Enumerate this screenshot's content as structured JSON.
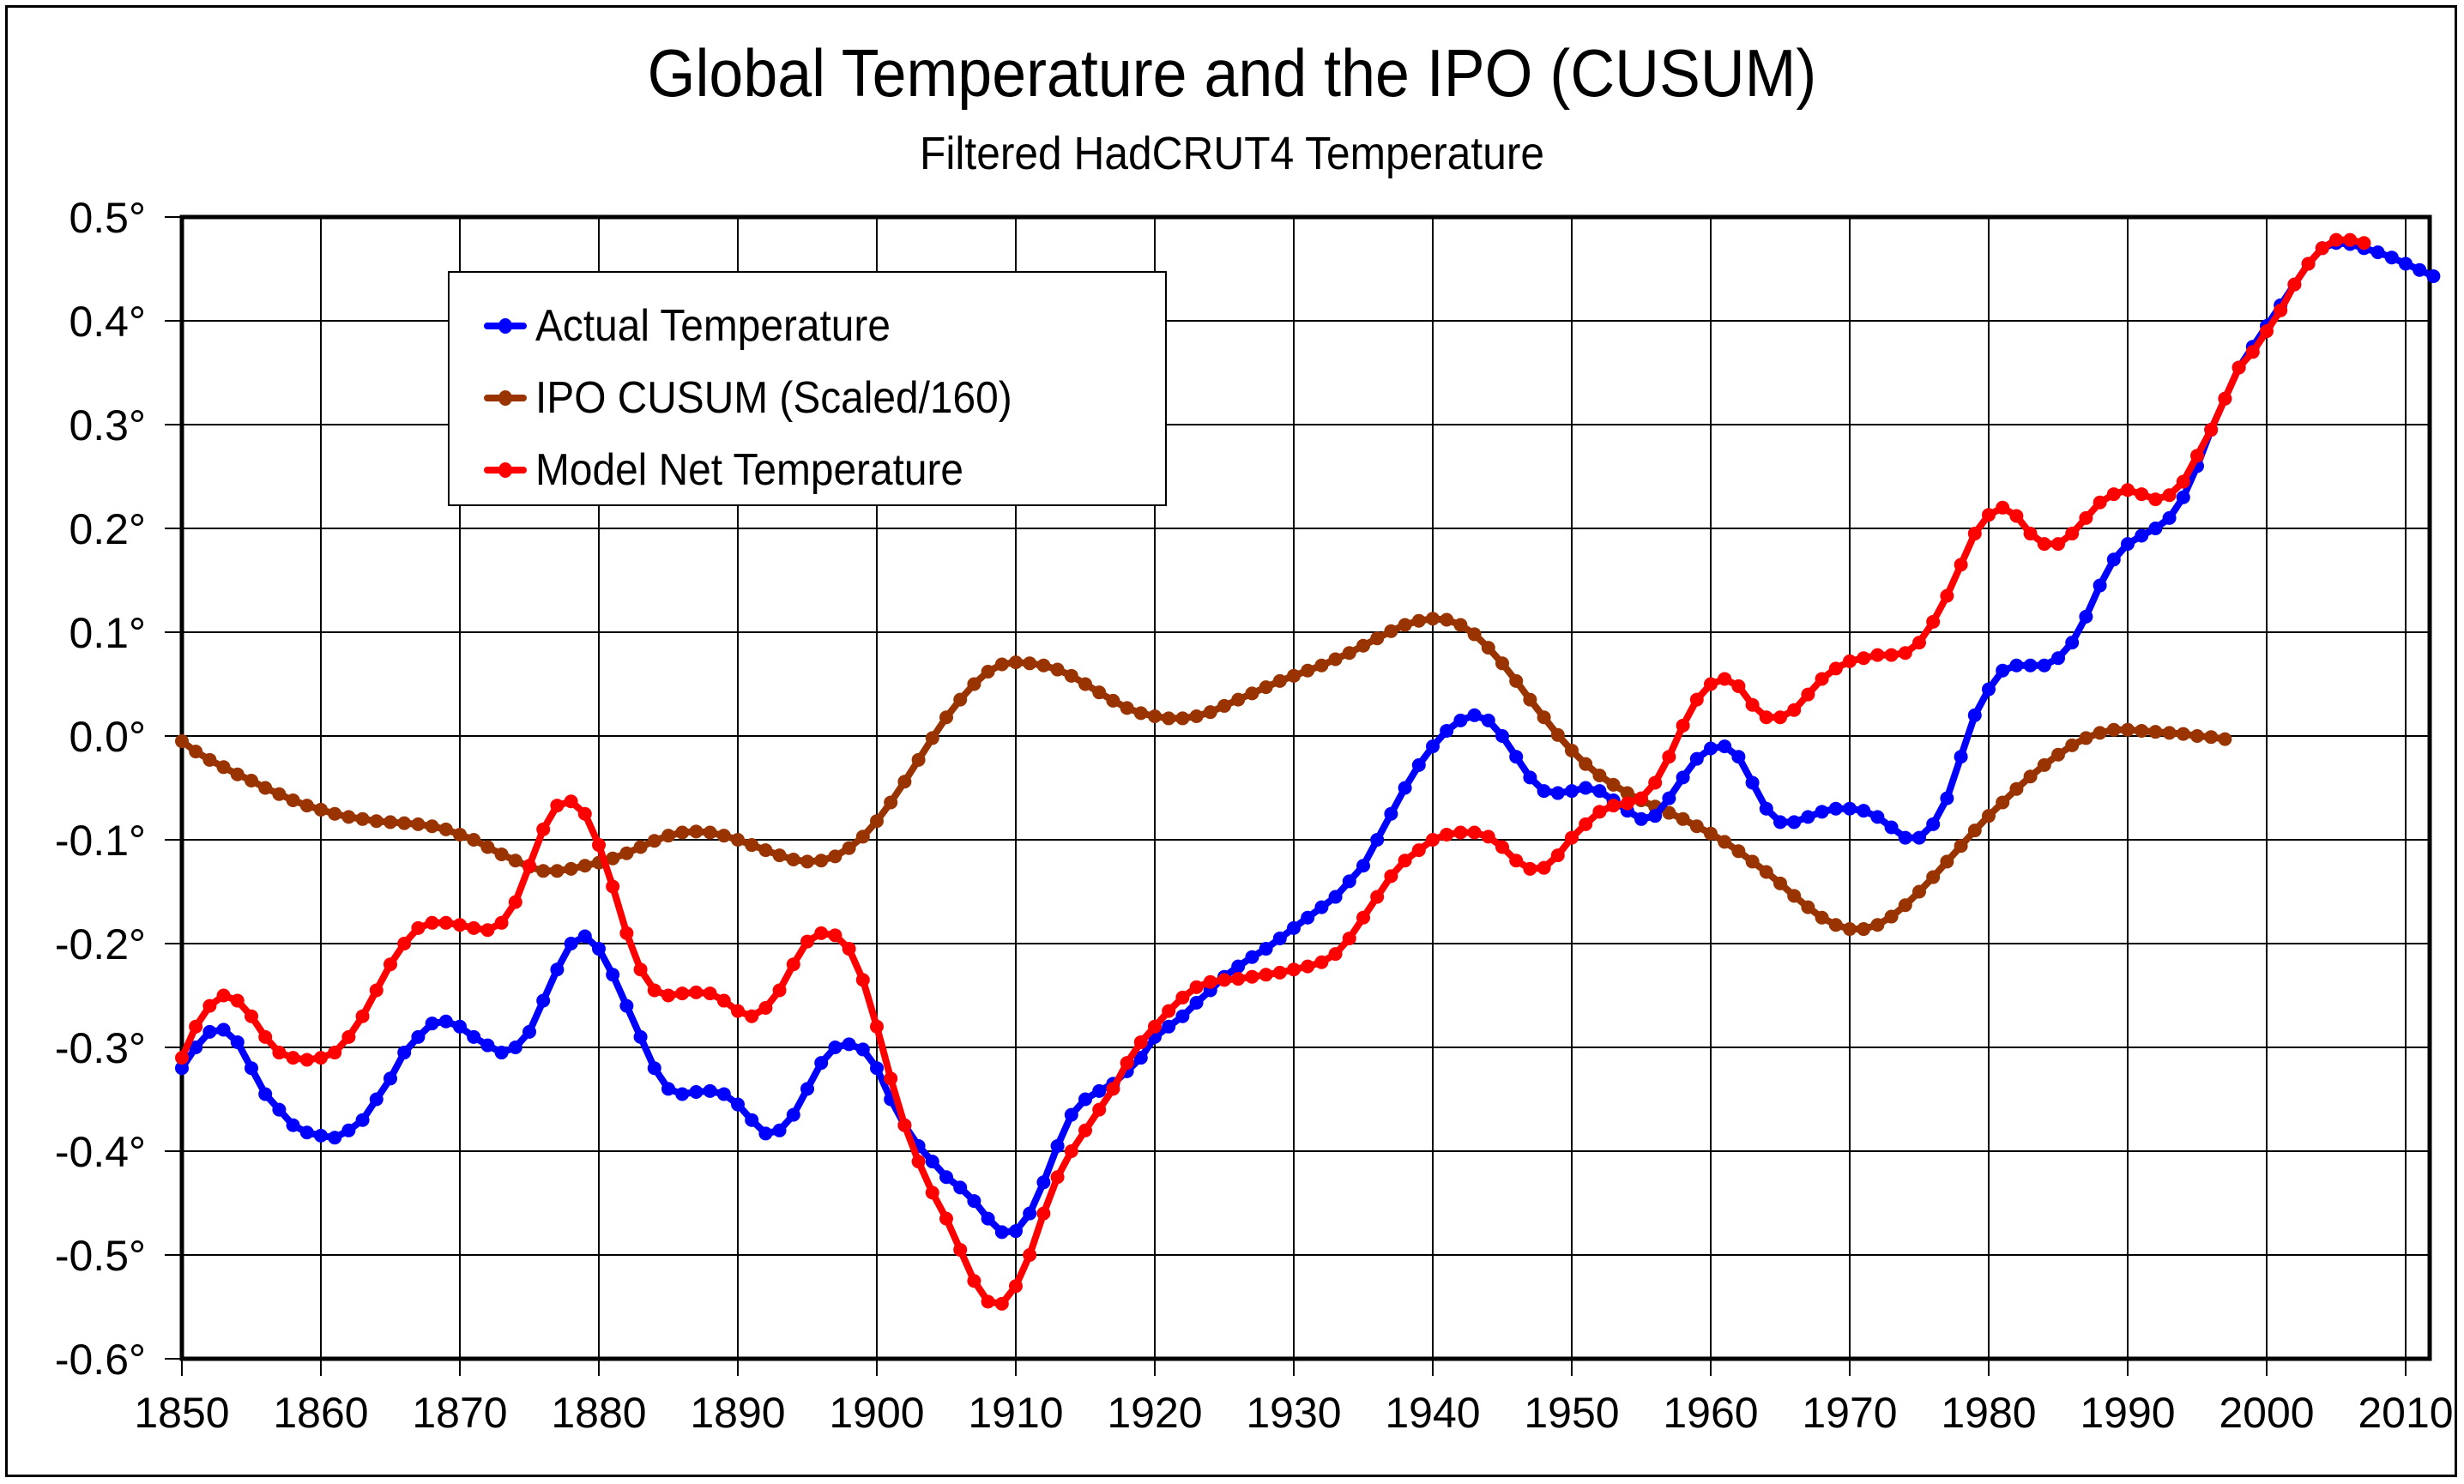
{
  "chart_data": {
    "type": "line",
    "title": "Global Temperature and the IPO (CUSUM)",
    "subtitle": "Filtered HadCRUT4 Temperature",
    "xlabel": "",
    "ylabel": "",
    "xlim": [
      1850,
      2012
    ],
    "ylim": [
      -0.6,
      0.5
    ],
    "grid": true,
    "legend_position": "top-left",
    "x_ticks": [
      "1850",
      "1860",
      "1870",
      "1880",
      "1890",
      "1900",
      "1910",
      "1920",
      "1930",
      "1940",
      "1950",
      "1960",
      "1970",
      "1980",
      "1990",
      "2000",
      "2010"
    ],
    "y_ticks": [
      "0.5°",
      "0.4°",
      "0.3°",
      "0.2°",
      "0.1°",
      "0.0°",
      "-0.1°",
      "-0.2°",
      "-0.3°",
      "-0.4°",
      "-0.5°",
      "-0.6°"
    ],
    "series": [
      {
        "name": "Actual Temperature",
        "color": "#0000ff",
        "x_start": 1850,
        "values": [
          -0.32,
          -0.3,
          -0.285,
          -0.283,
          -0.295,
          -0.32,
          -0.345,
          -0.36,
          -0.375,
          -0.382,
          -0.385,
          -0.387,
          -0.38,
          -0.37,
          -0.35,
          -0.33,
          -0.305,
          -0.29,
          -0.277,
          -0.275,
          -0.28,
          -0.29,
          -0.298,
          -0.305,
          -0.3,
          -0.285,
          -0.255,
          -0.225,
          -0.2,
          -0.193,
          -0.205,
          -0.23,
          -0.26,
          -0.29,
          -0.32,
          -0.34,
          -0.345,
          -0.343,
          -0.342,
          -0.345,
          -0.355,
          -0.37,
          -0.383,
          -0.38,
          -0.365,
          -0.34,
          -0.315,
          -0.3,
          -0.297,
          -0.302,
          -0.32,
          -0.35,
          -0.375,
          -0.395,
          -0.41,
          -0.425,
          -0.435,
          -0.448,
          -0.465,
          -0.478,
          -0.477,
          -0.46,
          -0.43,
          -0.395,
          -0.365,
          -0.35,
          -0.342,
          -0.335,
          -0.323,
          -0.31,
          -0.29,
          -0.28,
          -0.27,
          -0.257,
          -0.245,
          -0.232,
          -0.222,
          -0.213,
          -0.205,
          -0.195,
          -0.185,
          -0.175,
          -0.165,
          -0.155,
          -0.14,
          -0.125,
          -0.1,
          -0.075,
          -0.05,
          -0.028,
          -0.01,
          0.005,
          0.015,
          0.02,
          0.015,
          0.0,
          -0.02,
          -0.04,
          -0.053,
          -0.055,
          -0.053,
          -0.05,
          -0.053,
          -0.062,
          -0.072,
          -0.08,
          -0.077,
          -0.06,
          -0.04,
          -0.022,
          -0.012,
          -0.01,
          -0.02,
          -0.045,
          -0.07,
          -0.083,
          -0.083,
          -0.078,
          -0.073,
          -0.07,
          -0.07,
          -0.072,
          -0.078,
          -0.088,
          -0.098,
          -0.098,
          -0.085,
          -0.06,
          -0.02,
          0.02,
          0.045,
          0.063,
          0.068,
          0.068,
          0.068,
          0.075,
          0.09,
          0.115,
          0.145,
          0.17,
          0.185,
          0.193,
          0.2,
          0.21,
          0.23,
          0.26,
          0.295,
          0.325,
          0.355,
          0.375,
          0.395,
          0.415,
          0.435,
          0.455,
          0.47,
          0.475,
          0.474,
          0.47,
          0.466,
          0.461,
          0.455,
          0.449,
          0.443
        ]
      },
      {
        "name": "IPO CUSUM (Scaled/160)",
        "color": "#993300",
        "x_start": 1850,
        "values": [
          -0.005,
          -0.015,
          -0.023,
          -0.03,
          -0.037,
          -0.043,
          -0.05,
          -0.056,
          -0.062,
          -0.067,
          -0.071,
          -0.075,
          -0.078,
          -0.08,
          -0.082,
          -0.083,
          -0.084,
          -0.085,
          -0.087,
          -0.09,
          -0.095,
          -0.1,
          -0.107,
          -0.114,
          -0.12,
          -0.126,
          -0.13,
          -0.13,
          -0.128,
          -0.125,
          -0.122,
          -0.118,
          -0.113,
          -0.107,
          -0.101,
          -0.096,
          -0.093,
          -0.092,
          -0.093,
          -0.096,
          -0.1,
          -0.105,
          -0.11,
          -0.115,
          -0.119,
          -0.121,
          -0.12,
          -0.116,
          -0.108,
          -0.097,
          -0.082,
          -0.064,
          -0.044,
          -0.023,
          -0.002,
          0.018,
          0.035,
          0.05,
          0.062,
          0.069,
          0.071,
          0.07,
          0.068,
          0.064,
          0.058,
          0.05,
          0.042,
          0.034,
          0.027,
          0.022,
          0.019,
          0.017,
          0.017,
          0.019,
          0.023,
          0.029,
          0.035,
          0.041,
          0.047,
          0.053,
          0.058,
          0.063,
          0.068,
          0.074,
          0.08,
          0.087,
          0.094,
          0.101,
          0.107,
          0.111,
          0.113,
          0.112,
          0.107,
          0.098,
          0.085,
          0.07,
          0.053,
          0.035,
          0.018,
          0.001,
          -0.014,
          -0.027,
          -0.038,
          -0.047,
          -0.055,
          -0.062,
          -0.068,
          -0.074,
          -0.08,
          -0.087,
          -0.094,
          -0.102,
          -0.111,
          -0.121,
          -0.131,
          -0.142,
          -0.154,
          -0.165,
          -0.175,
          -0.182,
          -0.186,
          -0.186,
          -0.182,
          -0.174,
          -0.163,
          -0.15,
          -0.136,
          -0.121,
          -0.106,
          -0.091,
          -0.077,
          -0.064,
          -0.051,
          -0.039,
          -0.028,
          -0.018,
          -0.009,
          -0.002,
          0.003,
          0.006,
          0.006,
          0.005,
          0.004,
          0.003,
          0.002,
          0.0,
          -0.001,
          -0.003
        ]
      },
      {
        "name": "Model Net Temperature",
        "color": "#ff0000",
        "x_start": 1850,
        "values": [
          -0.31,
          -0.28,
          -0.26,
          -0.25,
          -0.255,
          -0.27,
          -0.29,
          -0.305,
          -0.31,
          -0.312,
          -0.31,
          -0.305,
          -0.29,
          -0.27,
          -0.245,
          -0.22,
          -0.2,
          -0.185,
          -0.18,
          -0.18,
          -0.182,
          -0.185,
          -0.187,
          -0.18,
          -0.16,
          -0.125,
          -0.09,
          -0.067,
          -0.063,
          -0.075,
          -0.105,
          -0.145,
          -0.19,
          -0.225,
          -0.245,
          -0.25,
          -0.248,
          -0.247,
          -0.248,
          -0.255,
          -0.265,
          -0.27,
          -0.262,
          -0.245,
          -0.22,
          -0.198,
          -0.19,
          -0.192,
          -0.205,
          -0.235,
          -0.28,
          -0.33,
          -0.375,
          -0.41,
          -0.44,
          -0.465,
          -0.495,
          -0.525,
          -0.545,
          -0.547,
          -0.53,
          -0.5,
          -0.46,
          -0.425,
          -0.4,
          -0.38,
          -0.36,
          -0.34,
          -0.315,
          -0.295,
          -0.28,
          -0.265,
          -0.252,
          -0.242,
          -0.237,
          -0.235,
          -0.234,
          -0.232,
          -0.23,
          -0.228,
          -0.225,
          -0.222,
          -0.218,
          -0.21,
          -0.195,
          -0.175,
          -0.155,
          -0.135,
          -0.12,
          -0.11,
          -0.1,
          -0.095,
          -0.093,
          -0.093,
          -0.097,
          -0.107,
          -0.12,
          -0.128,
          -0.127,
          -0.115,
          -0.098,
          -0.085,
          -0.073,
          -0.067,
          -0.065,
          -0.06,
          -0.045,
          -0.02,
          0.01,
          0.035,
          0.05,
          0.055,
          0.048,
          0.03,
          0.018,
          0.018,
          0.025,
          0.04,
          0.055,
          0.065,
          0.072,
          0.075,
          0.078,
          0.078,
          0.08,
          0.09,
          0.11,
          0.135,
          0.165,
          0.195,
          0.213,
          0.22,
          0.212,
          0.195,
          0.185,
          0.185,
          0.195,
          0.21,
          0.225,
          0.233,
          0.237,
          0.233,
          0.228,
          0.232,
          0.245,
          0.27,
          0.295,
          0.325,
          0.355,
          0.37,
          0.39,
          0.41,
          0.435,
          0.455,
          0.47,
          0.478,
          0.478,
          0.475
        ]
      }
    ]
  }
}
